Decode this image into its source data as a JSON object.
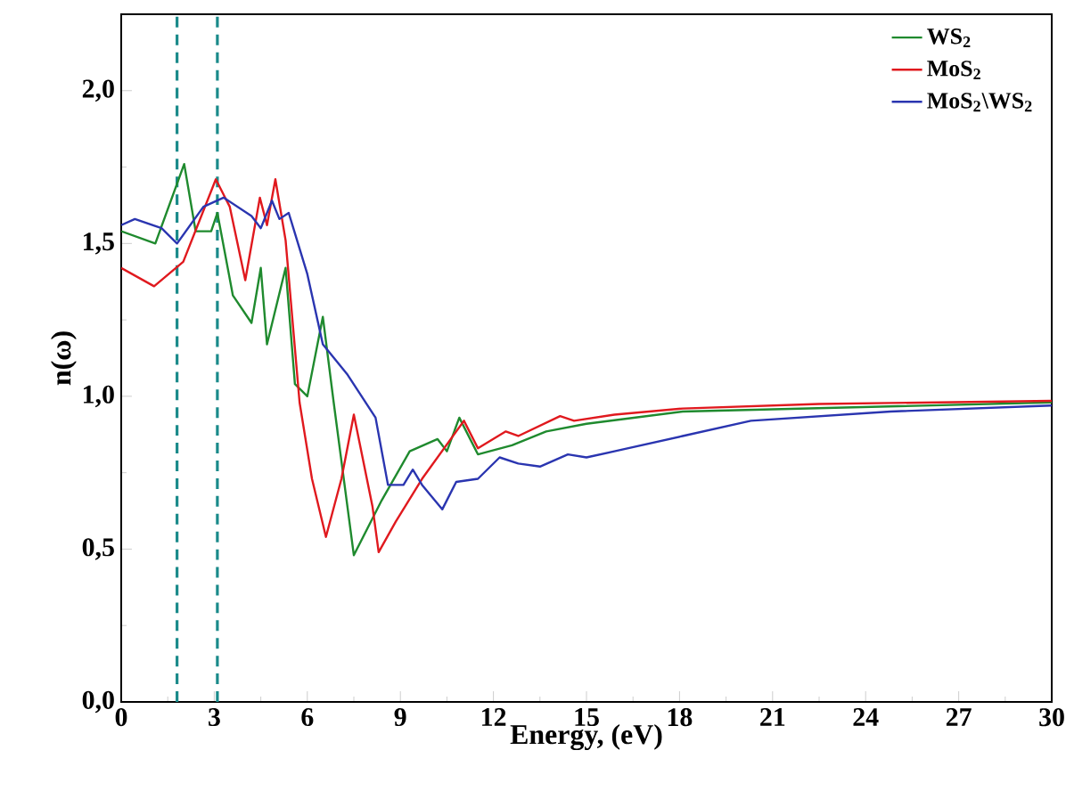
{
  "chart_data": {
    "type": "line",
    "xlabel": "Energy, (eV)",
    "ylabel": "n(ω)",
    "xlim": [
      0,
      30
    ],
    "ylim": [
      0,
      2.25
    ],
    "xticks": [
      0,
      3,
      6,
      9,
      12,
      15,
      18,
      21,
      24,
      27,
      30
    ],
    "yticks": [
      {
        "value": 0,
        "label": "0,0"
      },
      {
        "value": 0.5,
        "label": "0,5"
      },
      {
        "value": 1,
        "label": "1,0"
      },
      {
        "value": 1.5,
        "label": "1,5"
      },
      {
        "value": 2,
        "label": "2,0"
      }
    ],
    "legend": "top right",
    "grid": false,
    "ref_lines": [
      {
        "axis": "x",
        "value": 1.8,
        "color": "#1a8a8a",
        "line_style": "dashed"
      },
      {
        "axis": "x",
        "value": 3.1,
        "color": "#1a8a8a",
        "line_style": "dashed"
      }
    ],
    "series": [
      {
        "name": "WS$_{2}$",
        "color": "#1f8a2e",
        "x": [
          0,
          1.1,
          2.03,
          2.4,
          2.9,
          3.1,
          3.6,
          4.2,
          4.5,
          4.7,
          5.3,
          5.6,
          6.0,
          6.5,
          6.85,
          7.5,
          8.4,
          9.3,
          10.2,
          10.5,
          10.9,
          11.5,
          12.6,
          13.7,
          15.0,
          18.1,
          22.5,
          30
        ],
        "values": [
          1.54,
          1.5,
          1.76,
          1.54,
          1.54,
          1.6,
          1.33,
          1.24,
          1.42,
          1.17,
          1.42,
          1.04,
          1.0,
          1.26,
          0.98,
          0.48,
          0.66,
          0.82,
          0.86,
          0.82,
          0.93,
          0.81,
          0.84,
          0.885,
          0.91,
          0.95,
          null,
          0.98
        ]
      },
      {
        "name": "MoS$_{2}$",
        "color": "#e0191e",
        "x": [
          0,
          1.06,
          2.0,
          3.05,
          3.5,
          4.0,
          4.47,
          4.7,
          4.97,
          5.3,
          5.75,
          6.15,
          6.6,
          7.1,
          7.5,
          8.1,
          8.3,
          8.85,
          9.7,
          11.05,
          11.5,
          12.4,
          12.8,
          14.15,
          14.6,
          15.9,
          18.1,
          22.5,
          30
        ],
        "values": [
          1.42,
          1.36,
          1.44,
          1.71,
          1.62,
          1.38,
          1.65,
          1.56,
          1.71,
          1.51,
          0.98,
          0.73,
          0.54,
          0.73,
          0.94,
          0.64,
          0.49,
          0.59,
          0.73,
          0.92,
          0.83,
          0.885,
          0.87,
          0.935,
          0.92,
          0.94,
          0.96,
          0.975,
          0.985
        ]
      },
      {
        "name": "MoS$_{2}$\\WS$_{2}$",
        "color": "#2a35b0",
        "x": [
          0,
          0.44,
          1.3,
          1.8,
          2.65,
          3.3,
          4.2,
          4.5,
          4.86,
          5.1,
          5.4,
          6.0,
          6.5,
          7.3,
          8.2,
          8.6,
          9.1,
          9.4,
          9.7,
          10.35,
          10.8,
          11.5,
          12.2,
          12.8,
          13.5,
          14.4,
          15.0,
          15.9,
          18.1,
          20.3,
          24.8,
          30
        ],
        "values": [
          1.56,
          1.58,
          1.55,
          1.5,
          1.62,
          1.65,
          1.59,
          1.55,
          1.64,
          1.58,
          1.6,
          1.4,
          1.17,
          1.07,
          0.93,
          0.71,
          0.71,
          0.76,
          0.71,
          0.63,
          0.72,
          0.73,
          0.8,
          0.78,
          0.77,
          0.81,
          0.8,
          0.82,
          0.87,
          0.92,
          0.95,
          0.97
        ]
      }
    ]
  }
}
